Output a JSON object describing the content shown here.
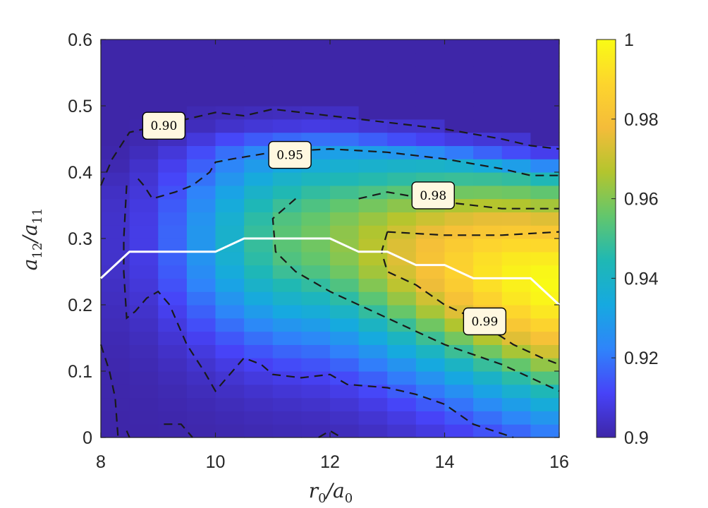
{
  "chart_data": {
    "type": "heatmap",
    "title": "",
    "xlabel": "r0/a0",
    "ylabel": "a12/a11",
    "xlim": [
      8,
      16
    ],
    "ylim": [
      0,
      0.6
    ],
    "xticks": [
      "8",
      "10",
      "12",
      "14",
      "16"
    ],
    "yticks": [
      "0",
      "0.1",
      "0.2",
      "0.3",
      "0.4",
      "0.5",
      "0.6"
    ],
    "x_step": 0.5,
    "y_step": 0.02,
    "colorbar": {
      "limits": [
        0.9,
        1.0
      ],
      "ticks": [
        "0.9",
        "0.92",
        "0.94",
        "0.96",
        "0.98",
        "1"
      ],
      "colormap": [
        "#3e26a8",
        "#4743f8",
        "#2f84fa",
        "#16a9e0",
        "#1fb8b4",
        "#62c66d",
        "#b3c52e",
        "#f4bc3a",
        "#fdd52d",
        "#f9fb15"
      ]
    },
    "contour_labels": [
      {
        "text": "0.90",
        "x": 9.1,
        "y": 0.47
      },
      {
        "text": "0.95",
        "x": 11.3,
        "y": 0.426
      },
      {
        "text": "0.98",
        "x": 13.8,
        "y": 0.365
      },
      {
        "text": "0.99",
        "x": 14.7,
        "y": 0.175
      }
    ],
    "contours": [
      {
        "level": "0.90",
        "points": [
          [
            8.0,
            0.38
          ],
          [
            8.2,
            0.42
          ],
          [
            8.5,
            0.46
          ],
          [
            9.0,
            0.47
          ],
          [
            9.5,
            0.48
          ],
          [
            10.0,
            0.49
          ],
          [
            10.5,
            0.485
          ],
          [
            11.0,
            0.495
          ],
          [
            12.0,
            0.485
          ],
          [
            13.0,
            0.475
          ],
          [
            14.0,
            0.465
          ],
          [
            15.0,
            0.45
          ],
          [
            15.5,
            0.44
          ],
          [
            16.0,
            0.435
          ]
        ]
      },
      {
        "level": "0.90",
        "points": [
          [
            8.65,
            0.39
          ],
          [
            8.75,
            0.38
          ],
          [
            8.9,
            0.36
          ],
          [
            9.3,
            0.37
          ],
          [
            9.6,
            0.38
          ],
          [
            9.9,
            0.4
          ],
          [
            10.0,
            0.415
          ],
          [
            10.3,
            0.42
          ],
          [
            11.0,
            0.43
          ],
          [
            12.0,
            0.435
          ],
          [
            13.0,
            0.43
          ],
          [
            14.0,
            0.42
          ],
          [
            15.0,
            0.405
          ],
          [
            15.5,
            0.395
          ],
          [
            16.0,
            0.395
          ]
        ]
      },
      {
        "level": "0.90",
        "points": [
          [
            8.45,
            0.38
          ],
          [
            8.4,
            0.3
          ],
          [
            8.4,
            0.25
          ],
          [
            8.45,
            0.18
          ],
          [
            8.6,
            0.19
          ],
          [
            8.8,
            0.21
          ],
          [
            9.0,
            0.22
          ],
          [
            9.2,
            0.2
          ],
          [
            9.5,
            0.14
          ],
          [
            9.8,
            0.1
          ],
          [
            10.0,
            0.07
          ],
          [
            10.2,
            0.09
          ],
          [
            10.5,
            0.12
          ],
          [
            10.8,
            0.11
          ],
          [
            11.0,
            0.095
          ],
          [
            11.5,
            0.09
          ],
          [
            12.0,
            0.095
          ],
          [
            12.3,
            0.08
          ],
          [
            13.0,
            0.075
          ],
          [
            13.5,
            0.065
          ],
          [
            14.0,
            0.05
          ],
          [
            14.5,
            0.02
          ],
          [
            15.2,
            0.0
          ]
        ]
      },
      {
        "level": "0.90",
        "points": [
          [
            8.0,
            0.14
          ],
          [
            8.15,
            0.1
          ],
          [
            8.25,
            0.06
          ],
          [
            8.3,
            0.0
          ]
        ]
      },
      {
        "level": "0.90",
        "points": [
          [
            8.5,
            0.0
          ],
          [
            8.45,
            0.01
          ]
        ]
      },
      {
        "level": "0.90",
        "points": [
          [
            9.1,
            0.02
          ],
          [
            9.4,
            0.02
          ],
          [
            9.6,
            0.0
          ]
        ]
      },
      {
        "level": "0.90",
        "points": [
          [
            11.8,
            0.0
          ],
          [
            12.0,
            0.01
          ],
          [
            12.2,
            0.0
          ]
        ]
      },
      {
        "level": "0.95",
        "points": [
          [
            12.5,
            0.36
          ],
          [
            13.0,
            0.37
          ],
          [
            14.0,
            0.355
          ],
          [
            15.0,
            0.345
          ],
          [
            16.0,
            0.345
          ]
        ]
      },
      {
        "level": "0.95",
        "points": [
          [
            11.4,
            0.36
          ],
          [
            11.0,
            0.33
          ],
          [
            11.05,
            0.28
          ],
          [
            11.4,
            0.25
          ],
          [
            12.0,
            0.22
          ],
          [
            13.0,
            0.18
          ],
          [
            14.0,
            0.14
          ],
          [
            15.0,
            0.11
          ],
          [
            16.0,
            0.07
          ]
        ]
      },
      {
        "level": "0.98",
        "points": [
          [
            13.0,
            0.31
          ],
          [
            14.0,
            0.305
          ],
          [
            15.0,
            0.305
          ],
          [
            16.0,
            0.31
          ]
        ]
      },
      {
        "level": "0.98",
        "points": [
          [
            13.0,
            0.31
          ],
          [
            12.9,
            0.28
          ],
          [
            13.0,
            0.25
          ],
          [
            13.5,
            0.23
          ],
          [
            14.0,
            0.2
          ],
          [
            14.5,
            0.18
          ],
          [
            15.2,
            0.14
          ],
          [
            15.7,
            0.12
          ],
          [
            16.0,
            0.11
          ]
        ]
      }
    ],
    "optimum_line": {
      "points": [
        [
          8.0,
          0.24
        ],
        [
          8.5,
          0.28
        ],
        [
          9.0,
          0.28
        ],
        [
          10.0,
          0.28
        ],
        [
          10.5,
          0.3
        ],
        [
          11.0,
          0.3
        ],
        [
          12.0,
          0.3
        ],
        [
          12.5,
          0.28
        ],
        [
          13.0,
          0.28
        ],
        [
          13.5,
          0.26
        ],
        [
          14.0,
          0.26
        ],
        [
          14.5,
          0.24
        ],
        [
          15.0,
          0.24
        ],
        [
          15.5,
          0.24
        ],
        [
          16.0,
          0.2
        ]
      ]
    }
  }
}
